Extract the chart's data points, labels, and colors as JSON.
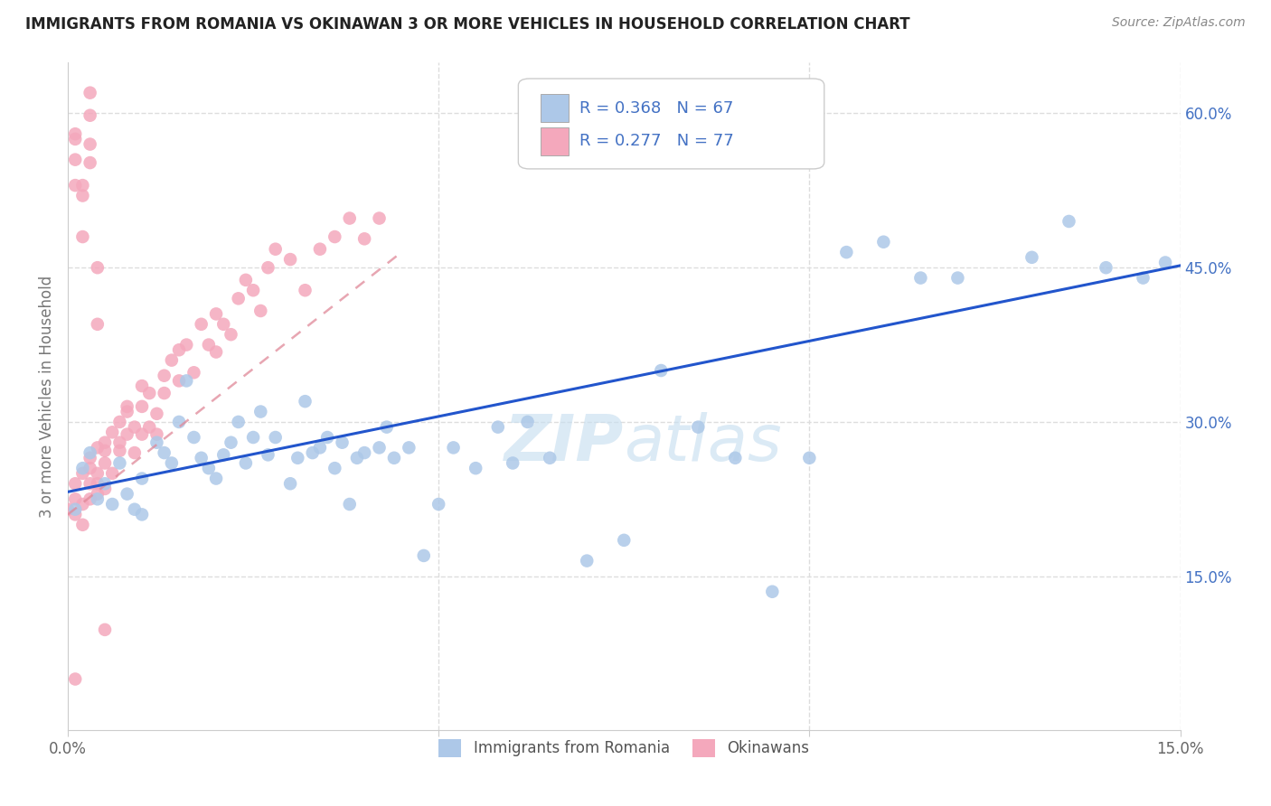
{
  "title": "IMMIGRANTS FROM ROMANIA VS OKINAWAN 3 OR MORE VEHICLES IN HOUSEHOLD CORRELATION CHART",
  "source": "Source: ZipAtlas.com",
  "ylabel": "3 or more Vehicles in Household",
  "xlim": [
    0.0,
    0.15
  ],
  "ylim": [
    0.0,
    0.65
  ],
  "xtick_positions": [
    0.0,
    0.05,
    0.1,
    0.15
  ],
  "xtick_labels": [
    "0.0%",
    "",
    "",
    "15.0%"
  ],
  "ytick_positions": [
    0.15,
    0.3,
    0.45,
    0.6
  ],
  "ytick_labels": [
    "15.0%",
    "30.0%",
    "45.0%",
    "60.0%"
  ],
  "legend_r1": "R = 0.368",
  "legend_n1": "N = 67",
  "legend_r2": "R = 0.277",
  "legend_n2": "N = 77",
  "color_blue": "#adc8e8",
  "color_pink": "#f4a8bc",
  "color_blue_text": "#4472c4",
  "color_trendline_blue": "#2255cc",
  "color_trendline_pink": "#e08898",
  "watermark_zip": "ZIP",
  "watermark_atlas": "atlas",
  "legend_label1": "Immigrants from Romania",
  "legend_label2": "Okinawans",
  "blue_trend_x": [
    0.0,
    0.15
  ],
  "blue_trend_y": [
    0.232,
    0.452
  ],
  "pink_trend_x": [
    0.0,
    0.045
  ],
  "pink_trend_y": [
    0.21,
    0.465
  ],
  "blue_x": [
    0.001,
    0.002,
    0.003,
    0.004,
    0.005,
    0.006,
    0.007,
    0.008,
    0.009,
    0.01,
    0.01,
    0.012,
    0.013,
    0.014,
    0.015,
    0.016,
    0.017,
    0.018,
    0.019,
    0.02,
    0.021,
    0.022,
    0.023,
    0.024,
    0.025,
    0.026,
    0.027,
    0.028,
    0.03,
    0.031,
    0.032,
    0.033,
    0.034,
    0.035,
    0.036,
    0.037,
    0.038,
    0.039,
    0.04,
    0.042,
    0.043,
    0.044,
    0.046,
    0.048,
    0.05,
    0.052,
    0.055,
    0.058,
    0.06,
    0.062,
    0.065,
    0.07,
    0.075,
    0.08,
    0.085,
    0.09,
    0.095,
    0.1,
    0.105,
    0.11,
    0.115,
    0.12,
    0.13,
    0.135,
    0.14,
    0.145,
    0.148
  ],
  "blue_y": [
    0.215,
    0.255,
    0.27,
    0.225,
    0.24,
    0.22,
    0.26,
    0.23,
    0.215,
    0.245,
    0.21,
    0.28,
    0.27,
    0.26,
    0.3,
    0.34,
    0.285,
    0.265,
    0.255,
    0.245,
    0.268,
    0.28,
    0.3,
    0.26,
    0.285,
    0.31,
    0.268,
    0.285,
    0.24,
    0.265,
    0.32,
    0.27,
    0.275,
    0.285,
    0.255,
    0.28,
    0.22,
    0.265,
    0.27,
    0.275,
    0.295,
    0.265,
    0.275,
    0.17,
    0.22,
    0.275,
    0.255,
    0.295,
    0.26,
    0.3,
    0.265,
    0.165,
    0.185,
    0.35,
    0.295,
    0.265,
    0.135,
    0.265,
    0.465,
    0.475,
    0.44,
    0.44,
    0.46,
    0.495,
    0.45,
    0.44,
    0.455
  ],
  "pink_x": [
    0.0,
    0.001,
    0.001,
    0.001,
    0.001,
    0.002,
    0.002,
    0.002,
    0.003,
    0.003,
    0.003,
    0.003,
    0.004,
    0.004,
    0.004,
    0.004,
    0.005,
    0.005,
    0.005,
    0.005,
    0.006,
    0.006,
    0.007,
    0.007,
    0.007,
    0.008,
    0.008,
    0.008,
    0.009,
    0.009,
    0.01,
    0.01,
    0.01,
    0.011,
    0.011,
    0.012,
    0.012,
    0.013,
    0.013,
    0.014,
    0.015,
    0.015,
    0.016,
    0.017,
    0.018,
    0.019,
    0.02,
    0.02,
    0.021,
    0.022,
    0.023,
    0.024,
    0.025,
    0.026,
    0.027,
    0.028,
    0.03,
    0.032,
    0.034,
    0.036,
    0.038,
    0.04,
    0.042,
    0.001,
    0.001,
    0.001,
    0.001,
    0.002,
    0.002,
    0.002,
    0.003,
    0.003,
    0.003,
    0.003,
    0.004,
    0.004,
    0.005
  ],
  "pink_y": [
    0.215,
    0.21,
    0.225,
    0.24,
    0.05,
    0.2,
    0.22,
    0.25,
    0.24,
    0.255,
    0.225,
    0.265,
    0.23,
    0.24,
    0.25,
    0.275,
    0.235,
    0.26,
    0.272,
    0.28,
    0.25,
    0.29,
    0.272,
    0.28,
    0.3,
    0.288,
    0.31,
    0.315,
    0.27,
    0.295,
    0.288,
    0.315,
    0.335,
    0.295,
    0.328,
    0.288,
    0.308,
    0.328,
    0.345,
    0.36,
    0.34,
    0.37,
    0.375,
    0.348,
    0.395,
    0.375,
    0.368,
    0.405,
    0.395,
    0.385,
    0.42,
    0.438,
    0.428,
    0.408,
    0.45,
    0.468,
    0.458,
    0.428,
    0.468,
    0.48,
    0.498,
    0.478,
    0.498,
    0.53,
    0.555,
    0.58,
    0.575,
    0.52,
    0.48,
    0.53,
    0.57,
    0.62,
    0.598,
    0.552,
    0.45,
    0.395,
    0.098
  ]
}
